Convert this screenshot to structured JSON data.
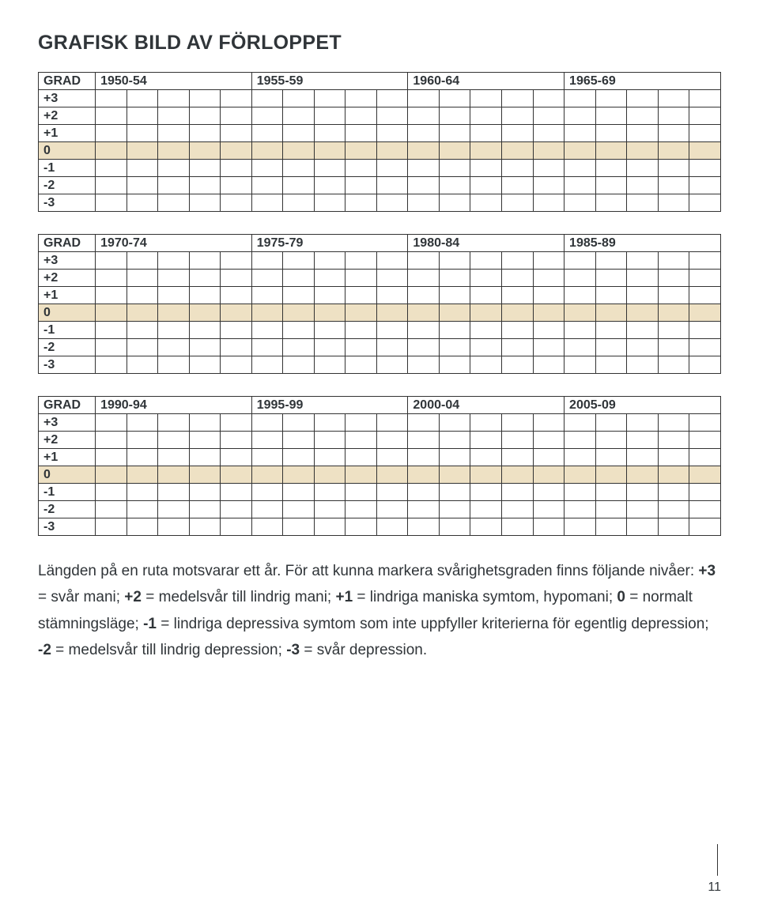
{
  "title": "GRAFISK BILD AV FÖRLOPPET",
  "charts": [
    {
      "headLabel": "GRAD",
      "periods": [
        "1950-54",
        "1955-59",
        "1960-64",
        "1965-69"
      ]
    },
    {
      "headLabel": "GRAD",
      "periods": [
        "1970-74",
        "1975-79",
        "1980-84",
        "1985-89"
      ]
    },
    {
      "headLabel": "GRAD",
      "periods": [
        "1990-94",
        "1995-99",
        "2000-04",
        "2005-09"
      ]
    }
  ],
  "rowLabels": [
    "+3",
    "+2",
    "+1",
    "0",
    "-1",
    "-2",
    "-3"
  ],
  "zeroRowLabel": "0",
  "yearsPerPeriod": 5,
  "colors": {
    "zeroRow": "#eee1c4",
    "border": "#333333",
    "text": "#303539",
    "background": "#ffffff"
  },
  "bodyParts": {
    "p1": "Längden på en ruta motsvarar ett år. För att kunna markera svårighetsgraden finns följande nivåer: ",
    "b1": "+3",
    "p2": " = svår mani; ",
    "b2": "+2",
    "p3": " = medelsvår till lindrig mani; ",
    "b3": "+1",
    "p4": " = lindriga maniska symtom, hypomani; ",
    "b4": "0",
    "p5": " = normalt stämningsläge; ",
    "b5": "-1",
    "p6": " = lindriga depressiva symtom som inte uppfyller kriterierna för egentlig depression; ",
    "b6": "-2",
    "p7": " = medelsvår till lindrig depression; ",
    "b7": "-3",
    "p8": " = svår depression."
  },
  "pageNumber": "11"
}
